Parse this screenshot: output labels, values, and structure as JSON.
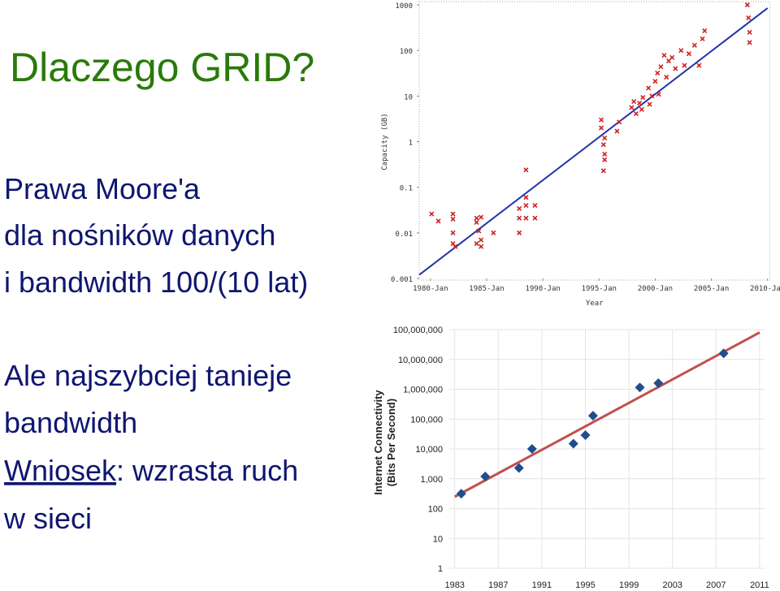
{
  "title": "Dlaczego GRID?",
  "blocks": [
    [
      "Prawa Moore'a",
      "dla nośników danych",
      "i bandwidth 100/(10 lat)"
    ],
    [
      "Ale najszybciej tanieje",
      "bandwidth"
    ]
  ],
  "conclusion": {
    "underlined": "Wniosek",
    "rest": ": wzrasta ruch",
    "last": "w sieci"
  },
  "chart_data": [
    {
      "type": "scatter",
      "log_y": true,
      "grid": false,
      "color": "#cc2222",
      "marker": "cross",
      "x_label": "Year",
      "y_label": [
        "Capacity (GB)"
      ],
      "xlim": [
        1979,
        2010.2
      ],
      "ylim": [
        0.001,
        1000
      ],
      "xticks": [
        {
          "value": 1980,
          "label": "1980-Jan"
        },
        {
          "value": 1985,
          "label": "1985-Jan"
        },
        {
          "value": 1990,
          "label": "1990-Jan"
        },
        {
          "value": 1995,
          "label": "1995-Jan"
        },
        {
          "value": 2000,
          "label": "2000-Jan"
        },
        {
          "value": 2005,
          "label": "2005-Jan"
        },
        {
          "value": 2010,
          "label": "2010-Jan"
        }
      ],
      "yticks": [
        0.001,
        0.01,
        0.1,
        1,
        10,
        100,
        1000
      ],
      "x": [
        1980.1,
        1980.7,
        1982.0,
        1982.0,
        1982.0,
        1982.0,
        1982.2,
        1984.1,
        1984.1,
        1984.3,
        1984.1,
        1984.5,
        1984.5,
        1984.5,
        1985.6,
        1987.9,
        1987.9,
        1987.9,
        1988.5,
        1988.5,
        1988.5,
        1988.5,
        1989.3,
        1989.3,
        1995.2,
        1995.2,
        1995.5,
        1995.4,
        1995.5,
        1995.5,
        1995.4,
        1996.6,
        1996.8,
        1997.9,
        1998.1,
        1998.3,
        1998.6,
        1998.8,
        1998.9,
        1999.4,
        1999.5,
        1999.7,
        2000.0,
        2000.2,
        2000.3,
        2000.5,
        2000.8,
        2001.0,
        2001.2,
        2001.5,
        2001.8,
        2002.3,
        2002.6,
        2003.0,
        2003.5,
        2003.9,
        2004.2,
        2004.4,
        2008.2,
        2008.3,
        2008.4,
        2008.4
      ],
      "values": [
        0.026,
        0.018,
        0.026,
        0.02,
        0.01,
        0.0058,
        0.005,
        0.021,
        0.017,
        0.011,
        0.0058,
        0.022,
        0.007,
        0.005,
        0.01,
        0.01,
        0.021,
        0.034,
        0.24,
        0.06,
        0.04,
        0.021,
        0.04,
        0.021,
        3,
        2,
        1.2,
        0.86,
        0.53,
        0.4,
        0.23,
        1.7,
        2.7,
        5.6,
        7.6,
        4.1,
        7,
        5.1,
        9.3,
        15,
        6.6,
        10,
        21,
        32,
        11,
        44,
        78,
        26,
        59,
        70,
        40,
        100,
        47,
        85,
        130,
        47,
        180,
        270,
        1000,
        520,
        250,
        150
      ],
      "trend": {
        "x": [
          1979,
          2010
        ],
        "values": [
          0.0012,
          850
        ],
        "color": "#2233aa"
      }
    },
    {
      "type": "scatter",
      "log_y": true,
      "grid": true,
      "color": "#1f4e8c",
      "marker": "diamond",
      "y_label": [
        "Internet Connectivity",
        "(Bits Per Second)"
      ],
      "xlim": [
        1982.5,
        2011.5
      ],
      "ylim": [
        1,
        100000000
      ],
      "xticks": [
        1983,
        1987,
        1991,
        1995,
        1999,
        2003,
        2007,
        2011
      ],
      "yticks": [
        1,
        10,
        100,
        {
          "value": 1000,
          "label": "1,000"
        },
        {
          "value": 10000,
          "label": "10,000"
        },
        {
          "value": 100000,
          "label": "100,000"
        },
        {
          "value": 1000000,
          "label": "1,000,000"
        },
        {
          "value": 10000000,
          "label": "10,000,000"
        },
        {
          "value": 100000000,
          "label": "100,000,000"
        }
      ],
      "x": [
        1983.6,
        1985.8,
        1988.9,
        1990.1,
        1993.9,
        1995.0,
        1995.7,
        2000.0,
        2001.7,
        2007.7
      ],
      "values": [
        316,
        1200,
        2300,
        10000,
        15000,
        29000,
        130000,
        1150000,
        1600000,
        16000000
      ],
      "trend": {
        "x": [
          1983,
          2011
        ],
        "values": [
          250,
          80000000
        ],
        "color": "#c0504d"
      }
    }
  ]
}
